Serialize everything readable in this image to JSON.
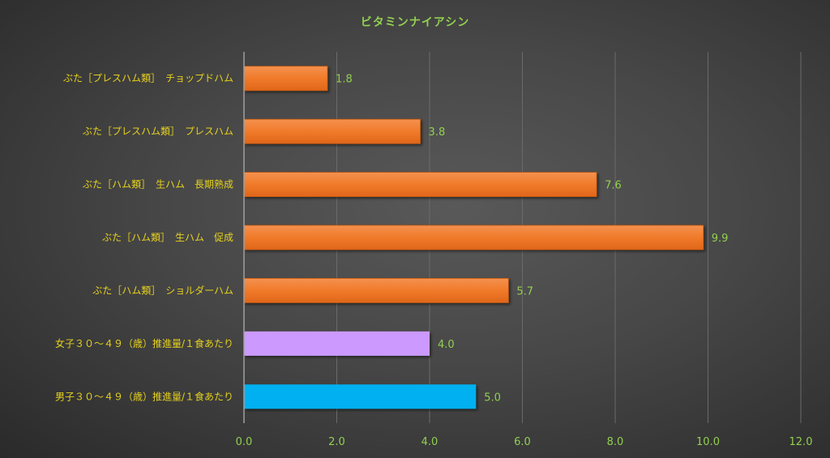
{
  "chart_data": {
    "type": "bar",
    "orientation": "horizontal",
    "title": "ビタミンナイアシン",
    "categories": [
      "ぶた［プレスハム類］　チョップドハム",
      "ぶた［プレスハム類］　プレスハム",
      "ぶた［ハム類］　生ハム　長期熟成",
      "ぶた［ハム類］　生ハム　促成",
      "ぶた［ハム類］　ショルダーハム",
      "女子３０～４９（歳）推進量/１食あたり",
      "男子３０～４９（歳）推進量/１食あたり"
    ],
    "values": [
      1.8,
      3.8,
      7.6,
      9.9,
      5.7,
      4.0,
      5.0
    ],
    "value_labels": [
      "1.8",
      "3.8",
      "7.6",
      "9.9",
      "5.7",
      "4.0",
      "5.0"
    ],
    "bar_colors": [
      "#ed7125",
      "#ed7125",
      "#ed7125",
      "#ed7125",
      "#ed7125",
      "#cc99ff",
      "#00b0f0"
    ],
    "xlim": [
      0,
      12
    ],
    "xticks": [
      "0.0",
      "2.0",
      "4.0",
      "6.0",
      "8.0",
      "10.0",
      "12.0"
    ],
    "grid": true,
    "legend": "none",
    "colors": {
      "title": "#92d050",
      "category_labels": "#e6d21e",
      "value_labels": "#92d050",
      "gridline": "#6a6a6a"
    }
  }
}
